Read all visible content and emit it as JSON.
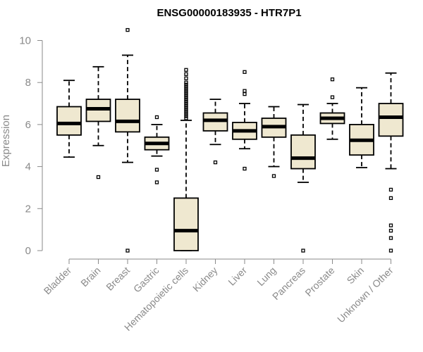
{
  "chart_data": {
    "type": "boxplot",
    "title": "ENSG00000183935 - HTR7P1",
    "ylabel": "Expression",
    "xlabel": "",
    "ylim": [
      0,
      10.5
    ],
    "yticks": [
      0,
      2,
      4,
      6,
      8,
      10
    ],
    "grid": false,
    "box_color": "#efe8d0",
    "categories": [
      "Bladder",
      "Brain",
      "Breast",
      "Gastric",
      "Hematopoietic cells",
      "Kidney",
      "Liver",
      "Lung",
      "Pancreas",
      "Prostate",
      "Skin",
      "Unknown / Other"
    ],
    "boxes": [
      {
        "whisker_low": 4.45,
        "q1": 5.5,
        "median": 6.05,
        "q3": 6.85,
        "whisker_high": 8.1,
        "outliers": []
      },
      {
        "whisker_low": 5.0,
        "q1": 6.15,
        "median": 6.75,
        "q3": 7.2,
        "whisker_high": 8.75,
        "outliers": [
          3.5
        ]
      },
      {
        "whisker_low": 4.2,
        "q1": 5.65,
        "median": 6.15,
        "q3": 7.2,
        "whisker_high": 9.3,
        "outliers": [
          0.0,
          10.5
        ]
      },
      {
        "whisker_low": 4.5,
        "q1": 4.8,
        "median": 5.1,
        "q3": 5.4,
        "whisker_high": 6.0,
        "outliers": [
          6.35,
          3.85,
          3.25
        ]
      },
      {
        "whisker_low": 0.0,
        "q1": 0.0,
        "median": 0.95,
        "q3": 2.5,
        "whisker_high": 6.2,
        "outliers": [
          6.3,
          6.4,
          6.5,
          6.6,
          6.7,
          6.8,
          6.9,
          7.0,
          7.1,
          7.2,
          7.3,
          7.4,
          7.5,
          7.6,
          7.7,
          7.8,
          7.9,
          8.0,
          8.2,
          8.4,
          8.6
        ]
      },
      {
        "whisker_low": 5.05,
        "q1": 5.7,
        "median": 6.2,
        "q3": 6.55,
        "whisker_high": 7.2,
        "outliers": [
          4.2
        ]
      },
      {
        "whisker_low": 4.85,
        "q1": 5.3,
        "median": 5.7,
        "q3": 6.1,
        "whisker_high": 7.0,
        "outliers": [
          8.5,
          7.6,
          7.45,
          3.9
        ]
      },
      {
        "whisker_low": 4.0,
        "q1": 5.4,
        "median": 5.9,
        "q3": 6.3,
        "whisker_high": 6.85,
        "outliers": [
          3.55
        ]
      },
      {
        "whisker_low": 3.25,
        "q1": 3.9,
        "median": 4.4,
        "q3": 5.5,
        "whisker_high": 6.95,
        "outliers": [
          0.0
        ]
      },
      {
        "whisker_low": 5.3,
        "q1": 6.05,
        "median": 6.3,
        "q3": 6.55,
        "whisker_high": 7.0,
        "outliers": [
          8.15,
          7.3
        ]
      },
      {
        "whisker_low": 3.95,
        "q1": 4.55,
        "median": 5.25,
        "q3": 6.0,
        "whisker_high": 7.75,
        "outliers": []
      },
      {
        "whisker_low": 3.9,
        "q1": 5.45,
        "median": 6.35,
        "q3": 7.0,
        "whisker_high": 8.45,
        "outliers": [
          2.9,
          2.5,
          1.2,
          0.95,
          0.6,
          0.0
        ]
      }
    ]
  }
}
